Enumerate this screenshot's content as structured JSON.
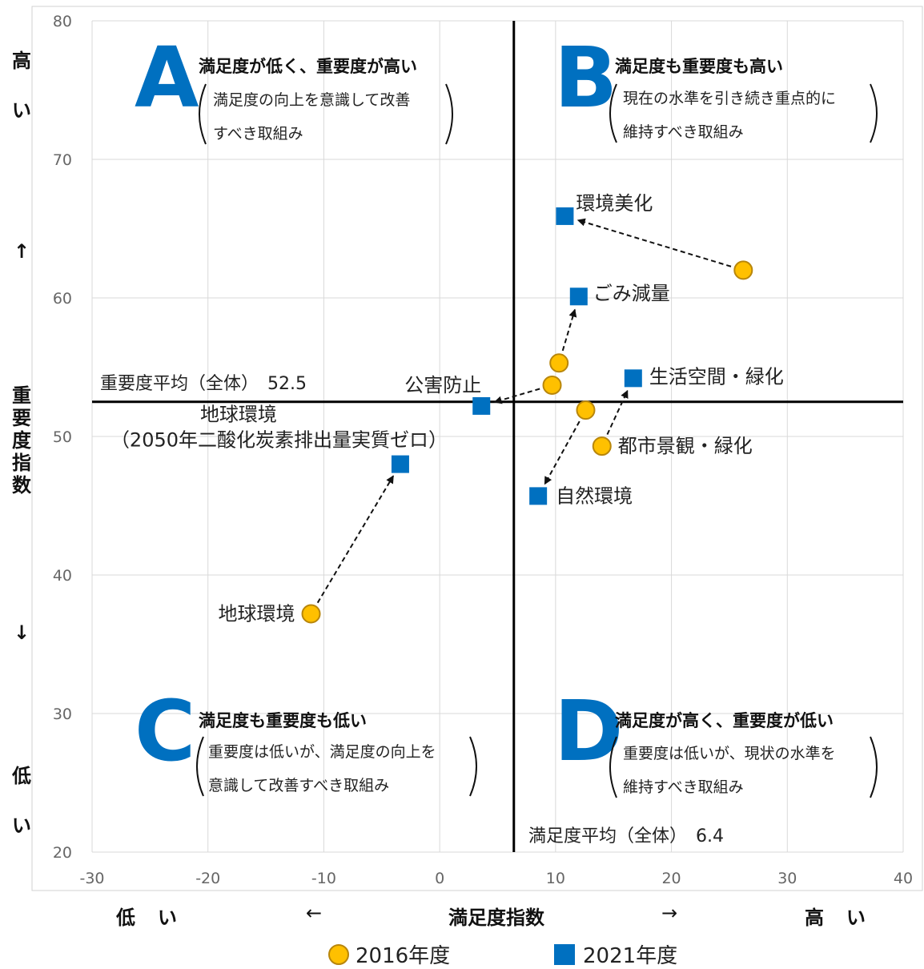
{
  "chart_data": {
    "type": "scatter",
    "xlim": [
      -30,
      40
    ],
    "ylim": [
      20,
      80
    ],
    "x_ticks": [
      -30,
      -20,
      -10,
      0,
      10,
      20,
      30,
      40
    ],
    "y_ticks": [
      20,
      30,
      40,
      50,
      60,
      70,
      80
    ],
    "grid": true,
    "legend_placement": "bottom",
    "xlabel": "満足度指数",
    "x_low": "低　い",
    "x_left_arrow": "←",
    "x_right_arrow": "→",
    "x_high": "高　い",
    "ylabel": "重要度指数",
    "y_high": "高い",
    "y_up_arrow": "↑",
    "y_down_arrow": "↓",
    "y_low": "低い",
    "avg_x": 6.4,
    "avg_y": 52.5,
    "avg_x_label": "満足度平均（全体）　6.4",
    "avg_y_label": "重要度平均（全体）　52.5",
    "colors": {
      "s2016_fill": "#FFC000",
      "s2016_stroke": "#B8860B",
      "s2021": "#0070C0",
      "quadrant_letter": "#0070C0"
    },
    "series": [
      {
        "name": "2016年度",
        "marker": "circle",
        "points": [
          {
            "id": "env-beautify",
            "x": 26.2,
            "y": 62.0
          },
          {
            "id": "waste",
            "x": 10.3,
            "y": 55.3
          },
          {
            "id": "pollution",
            "x": 9.7,
            "y": 53.7
          },
          {
            "id": "nature",
            "x": 12.6,
            "y": 51.9
          },
          {
            "id": "cityscape",
            "x": 14.0,
            "y": 49.3,
            "label": "都市景観・緑化"
          },
          {
            "id": "global",
            "x": -11.1,
            "y": 37.2,
            "label": "地球環境"
          }
        ]
      },
      {
        "name": "2021年度",
        "marker": "square",
        "points": [
          {
            "id": "env-beautify",
            "x": 10.8,
            "y": 65.9,
            "label": "環境美化"
          },
          {
            "id": "waste",
            "x": 12.0,
            "y": 60.1,
            "label": "ごみ減量"
          },
          {
            "id": "pollution",
            "x": 3.6,
            "y": 52.2,
            "label": "公害防止"
          },
          {
            "id": "living",
            "x": 16.7,
            "y": 54.2,
            "label": "生活空間・緑化"
          },
          {
            "id": "nature",
            "x": 8.5,
            "y": 45.7,
            "label": "自然環境"
          },
          {
            "id": "global",
            "x": -3.4,
            "y": 48.0,
            "label": "地球環境\n（2050年二酸化炭素排出量実質ゼロ）"
          }
        ]
      }
    ],
    "transitions": [
      {
        "from": [
          26.2,
          62.0
        ],
        "to": [
          10.8,
          65.9
        ]
      },
      {
        "from": [
          10.3,
          55.3
        ],
        "to": [
          12.0,
          60.1
        ]
      },
      {
        "from": [
          9.7,
          53.7
        ],
        "to": [
          3.6,
          52.2
        ]
      },
      {
        "from": [
          12.6,
          51.9
        ],
        "to": [
          8.5,
          45.7
        ]
      },
      {
        "from": [
          14.0,
          49.3
        ],
        "to": [
          16.7,
          54.2
        ]
      },
      {
        "from": [
          -11.1,
          37.2
        ],
        "to": [
          -3.4,
          48.0
        ]
      }
    ],
    "quadrants": [
      {
        "letter": "A",
        "title": "満足度が低く、重要度が高い",
        "desc": [
          "満足度の向上を意識して改善",
          "すべき取組み"
        ]
      },
      {
        "letter": "B",
        "title": "満足度も重要度も高い",
        "desc": [
          "現在の水準を引き続き重点的に",
          "維持すべき取組み"
        ]
      },
      {
        "letter": "C",
        "title": "満足度も重要度も低い",
        "desc": [
          "重要度は低いが、満足度の向上を",
          "意識して改善すべき取組み"
        ]
      },
      {
        "letter": "D",
        "title": "満足度が高く、重要度が低い",
        "desc": [
          "重要度は低いが、現状の水準を",
          "維持すべき取組み"
        ]
      }
    ]
  }
}
